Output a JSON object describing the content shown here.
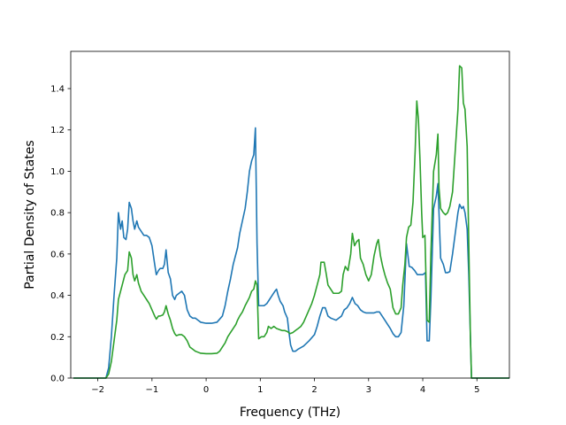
{
  "chart_data": {
    "type": "line",
    "title": "",
    "xlabel": "Frequency (THz)",
    "ylabel": "Partial Density of States",
    "xlim": [
      -2.5,
      5.6
    ],
    "ylim": [
      0.0,
      1.58
    ],
    "xticks": [
      -2,
      -1,
      0,
      1,
      2,
      3,
      4,
      5
    ],
    "xtick_labels": [
      "−2",
      "−1",
      "0",
      "1",
      "2",
      "3",
      "4",
      "5"
    ],
    "yticks": [
      0.0,
      0.2,
      0.4,
      0.6,
      0.8,
      1.0,
      1.2,
      1.4
    ],
    "ytick_labels": [
      "0.0",
      "0.2",
      "0.4",
      "0.6",
      "0.8",
      "1.0",
      "1.2",
      "1.4"
    ],
    "grid": false,
    "legend": "none",
    "colors": [
      "#1f77b4",
      "#2ca02c"
    ],
    "series": [
      {
        "color": "#1f77b4",
        "points": [
          [
            -2.45,
            0.0
          ],
          [
            -1.85,
            0.0
          ],
          [
            -1.8,
            0.05
          ],
          [
            -1.75,
            0.2
          ],
          [
            -1.7,
            0.4
          ],
          [
            -1.65,
            0.58
          ],
          [
            -1.62,
            0.8
          ],
          [
            -1.58,
            0.72
          ],
          [
            -1.55,
            0.76
          ],
          [
            -1.52,
            0.68
          ],
          [
            -1.48,
            0.67
          ],
          [
            -1.45,
            0.72
          ],
          [
            -1.42,
            0.85
          ],
          [
            -1.38,
            0.82
          ],
          [
            -1.35,
            0.76
          ],
          [
            -1.32,
            0.72
          ],
          [
            -1.28,
            0.76
          ],
          [
            -1.25,
            0.73
          ],
          [
            -1.2,
            0.71
          ],
          [
            -1.15,
            0.69
          ],
          [
            -1.1,
            0.69
          ],
          [
            -1.05,
            0.68
          ],
          [
            -1.0,
            0.64
          ],
          [
            -0.95,
            0.55
          ],
          [
            -0.92,
            0.5
          ],
          [
            -0.88,
            0.52
          ],
          [
            -0.85,
            0.53
          ],
          [
            -0.8,
            0.53
          ],
          [
            -0.77,
            0.55
          ],
          [
            -0.74,
            0.62
          ],
          [
            -0.7,
            0.51
          ],
          [
            -0.66,
            0.48
          ],
          [
            -0.62,
            0.4
          ],
          [
            -0.58,
            0.38
          ],
          [
            -0.55,
            0.4
          ],
          [
            -0.5,
            0.41
          ],
          [
            -0.45,
            0.42
          ],
          [
            -0.4,
            0.4
          ],
          [
            -0.35,
            0.33
          ],
          [
            -0.3,
            0.3
          ],
          [
            -0.25,
            0.29
          ],
          [
            -0.2,
            0.29
          ],
          [
            -0.15,
            0.28
          ],
          [
            -0.1,
            0.27
          ],
          [
            0.0,
            0.265
          ],
          [
            0.1,
            0.265
          ],
          [
            0.2,
            0.27
          ],
          [
            0.25,
            0.285
          ],
          [
            0.3,
            0.3
          ],
          [
            0.35,
            0.35
          ],
          [
            0.4,
            0.42
          ],
          [
            0.45,
            0.48
          ],
          [
            0.5,
            0.55
          ],
          [
            0.55,
            0.6
          ],
          [
            0.58,
            0.63
          ],
          [
            0.62,
            0.7
          ],
          [
            0.67,
            0.76
          ],
          [
            0.72,
            0.82
          ],
          [
            0.76,
            0.9
          ],
          [
            0.8,
            1.0
          ],
          [
            0.84,
            1.05
          ],
          [
            0.88,
            1.08
          ],
          [
            0.91,
            1.21
          ],
          [
            0.94,
            0.65
          ],
          [
            0.97,
            0.35
          ],
          [
            1.02,
            0.35
          ],
          [
            1.07,
            0.35
          ],
          [
            1.12,
            0.36
          ],
          [
            1.17,
            0.38
          ],
          [
            1.22,
            0.4
          ],
          [
            1.27,
            0.42
          ],
          [
            1.3,
            0.43
          ],
          [
            1.33,
            0.4
          ],
          [
            1.37,
            0.37
          ],
          [
            1.42,
            0.35
          ],
          [
            1.45,
            0.32
          ],
          [
            1.5,
            0.29
          ],
          [
            1.53,
            0.22
          ],
          [
            1.56,
            0.16
          ],
          [
            1.6,
            0.13
          ],
          [
            1.65,
            0.13
          ],
          [
            1.7,
            0.14
          ],
          [
            1.8,
            0.155
          ],
          [
            1.9,
            0.18
          ],
          [
            2.0,
            0.21
          ],
          [
            2.05,
            0.25
          ],
          [
            2.1,
            0.3
          ],
          [
            2.15,
            0.34
          ],
          [
            2.2,
            0.34
          ],
          [
            2.25,
            0.3
          ],
          [
            2.3,
            0.29
          ],
          [
            2.35,
            0.285
          ],
          [
            2.4,
            0.28
          ],
          [
            2.45,
            0.29
          ],
          [
            2.5,
            0.3
          ],
          [
            2.55,
            0.33
          ],
          [
            2.6,
            0.34
          ],
          [
            2.65,
            0.36
          ],
          [
            2.7,
            0.39
          ],
          [
            2.75,
            0.36
          ],
          [
            2.8,
            0.35
          ],
          [
            2.85,
            0.33
          ],
          [
            2.9,
            0.32
          ],
          [
            2.95,
            0.315
          ],
          [
            3.0,
            0.315
          ],
          [
            3.05,
            0.315
          ],
          [
            3.1,
            0.315
          ],
          [
            3.15,
            0.32
          ],
          [
            3.2,
            0.32
          ],
          [
            3.25,
            0.3
          ],
          [
            3.3,
            0.28
          ],
          [
            3.35,
            0.26
          ],
          [
            3.4,
            0.24
          ],
          [
            3.45,
            0.215
          ],
          [
            3.5,
            0.2
          ],
          [
            3.55,
            0.2
          ],
          [
            3.6,
            0.22
          ],
          [
            3.65,
            0.35
          ],
          [
            3.7,
            0.65
          ],
          [
            3.75,
            0.54
          ],
          [
            3.8,
            0.535
          ],
          [
            3.85,
            0.52
          ],
          [
            3.9,
            0.5
          ],
          [
            3.95,
            0.5
          ],
          [
            4.0,
            0.5
          ],
          [
            4.05,
            0.51
          ],
          [
            4.08,
            0.18
          ],
          [
            4.12,
            0.18
          ],
          [
            4.15,
            0.38
          ],
          [
            4.2,
            0.82
          ],
          [
            4.25,
            0.88
          ],
          [
            4.28,
            0.94
          ],
          [
            4.3,
            0.8
          ],
          [
            4.33,
            0.58
          ],
          [
            4.38,
            0.55
          ],
          [
            4.42,
            0.51
          ],
          [
            4.46,
            0.51
          ],
          [
            4.5,
            0.515
          ],
          [
            4.55,
            0.6
          ],
          [
            4.6,
            0.7
          ],
          [
            4.65,
            0.8
          ],
          [
            4.68,
            0.84
          ],
          [
            4.72,
            0.82
          ],
          [
            4.75,
            0.83
          ],
          [
            4.78,
            0.8
          ],
          [
            4.82,
            0.72
          ],
          [
            4.85,
            0.5
          ],
          [
            4.9,
            0.0
          ],
          [
            5.6,
            0.0
          ]
        ]
      },
      {
        "color": "#2ca02c",
        "points": [
          [
            -2.45,
            0.0
          ],
          [
            -1.85,
            0.0
          ],
          [
            -1.8,
            0.02
          ],
          [
            -1.75,
            0.08
          ],
          [
            -1.7,
            0.18
          ],
          [
            -1.65,
            0.28
          ],
          [
            -1.62,
            0.38
          ],
          [
            -1.58,
            0.42
          ],
          [
            -1.55,
            0.45
          ],
          [
            -1.5,
            0.5
          ],
          [
            -1.45,
            0.52
          ],
          [
            -1.42,
            0.61
          ],
          [
            -1.38,
            0.58
          ],
          [
            -1.35,
            0.5
          ],
          [
            -1.32,
            0.47
          ],
          [
            -1.28,
            0.5
          ],
          [
            -1.25,
            0.46
          ],
          [
            -1.2,
            0.42
          ],
          [
            -1.15,
            0.4
          ],
          [
            -1.1,
            0.38
          ],
          [
            -1.05,
            0.36
          ],
          [
            -1.0,
            0.33
          ],
          [
            -0.95,
            0.3
          ],
          [
            -0.92,
            0.285
          ],
          [
            -0.88,
            0.3
          ],
          [
            -0.85,
            0.3
          ],
          [
            -0.8,
            0.305
          ],
          [
            -0.77,
            0.32
          ],
          [
            -0.74,
            0.35
          ],
          [
            -0.7,
            0.31
          ],
          [
            -0.66,
            0.28
          ],
          [
            -0.62,
            0.24
          ],
          [
            -0.58,
            0.215
          ],
          [
            -0.55,
            0.205
          ],
          [
            -0.5,
            0.21
          ],
          [
            -0.45,
            0.21
          ],
          [
            -0.4,
            0.2
          ],
          [
            -0.35,
            0.18
          ],
          [
            -0.3,
            0.15
          ],
          [
            -0.25,
            0.14
          ],
          [
            -0.2,
            0.13
          ],
          [
            -0.15,
            0.125
          ],
          [
            -0.1,
            0.12
          ],
          [
            0.0,
            0.118
          ],
          [
            0.1,
            0.118
          ],
          [
            0.2,
            0.12
          ],
          [
            0.25,
            0.13
          ],
          [
            0.3,
            0.15
          ],
          [
            0.35,
            0.17
          ],
          [
            0.4,
            0.2
          ],
          [
            0.45,
            0.22
          ],
          [
            0.5,
            0.24
          ],
          [
            0.55,
            0.26
          ],
          [
            0.58,
            0.28
          ],
          [
            0.62,
            0.3
          ],
          [
            0.67,
            0.32
          ],
          [
            0.72,
            0.35
          ],
          [
            0.76,
            0.37
          ],
          [
            0.8,
            0.39
          ],
          [
            0.84,
            0.42
          ],
          [
            0.88,
            0.43
          ],
          [
            0.91,
            0.47
          ],
          [
            0.94,
            0.45
          ],
          [
            0.97,
            0.19
          ],
          [
            1.02,
            0.2
          ],
          [
            1.07,
            0.2
          ],
          [
            1.12,
            0.22
          ],
          [
            1.15,
            0.25
          ],
          [
            1.2,
            0.24
          ],
          [
            1.25,
            0.25
          ],
          [
            1.3,
            0.24
          ],
          [
            1.35,
            0.235
          ],
          [
            1.4,
            0.23
          ],
          [
            1.45,
            0.23
          ],
          [
            1.5,
            0.225
          ],
          [
            1.55,
            0.215
          ],
          [
            1.6,
            0.22
          ],
          [
            1.65,
            0.23
          ],
          [
            1.7,
            0.24
          ],
          [
            1.75,
            0.25
          ],
          [
            1.8,
            0.27
          ],
          [
            1.85,
            0.3
          ],
          [
            1.9,
            0.33
          ],
          [
            1.95,
            0.36
          ],
          [
            2.0,
            0.4
          ],
          [
            2.05,
            0.45
          ],
          [
            2.1,
            0.5
          ],
          [
            2.12,
            0.56
          ],
          [
            2.18,
            0.56
          ],
          [
            2.22,
            0.5
          ],
          [
            2.25,
            0.45
          ],
          [
            2.3,
            0.43
          ],
          [
            2.35,
            0.41
          ],
          [
            2.4,
            0.41
          ],
          [
            2.45,
            0.41
          ],
          [
            2.5,
            0.42
          ],
          [
            2.53,
            0.5
          ],
          [
            2.57,
            0.54
          ],
          [
            2.62,
            0.52
          ],
          [
            2.67,
            0.6
          ],
          [
            2.7,
            0.7
          ],
          [
            2.74,
            0.64
          ],
          [
            2.78,
            0.66
          ],
          [
            2.82,
            0.67
          ],
          [
            2.85,
            0.58
          ],
          [
            2.9,
            0.55
          ],
          [
            2.95,
            0.5
          ],
          [
            3.0,
            0.47
          ],
          [
            3.05,
            0.5
          ],
          [
            3.1,
            0.59
          ],
          [
            3.15,
            0.65
          ],
          [
            3.18,
            0.67
          ],
          [
            3.22,
            0.59
          ],
          [
            3.26,
            0.54
          ],
          [
            3.3,
            0.5
          ],
          [
            3.35,
            0.46
          ],
          [
            3.4,
            0.43
          ],
          [
            3.45,
            0.34
          ],
          [
            3.5,
            0.31
          ],
          [
            3.55,
            0.31
          ],
          [
            3.6,
            0.34
          ],
          [
            3.63,
            0.45
          ],
          [
            3.67,
            0.55
          ],
          [
            3.7,
            0.68
          ],
          [
            3.74,
            0.73
          ],
          [
            3.78,
            0.74
          ],
          [
            3.82,
            0.85
          ],
          [
            3.86,
            1.1
          ],
          [
            3.89,
            1.34
          ],
          [
            3.92,
            1.25
          ],
          [
            3.95,
            1.05
          ],
          [
            3.98,
            0.8
          ],
          [
            4.0,
            0.68
          ],
          [
            4.04,
            0.69
          ],
          [
            4.08,
            0.28
          ],
          [
            4.12,
            0.27
          ],
          [
            4.15,
            0.6
          ],
          [
            4.2,
            1.0
          ],
          [
            4.25,
            1.08
          ],
          [
            4.28,
            1.18
          ],
          [
            4.3,
            0.92
          ],
          [
            4.33,
            0.82
          ],
          [
            4.38,
            0.8
          ],
          [
            4.42,
            0.79
          ],
          [
            4.46,
            0.8
          ],
          [
            4.5,
            0.83
          ],
          [
            4.55,
            0.9
          ],
          [
            4.6,
            1.1
          ],
          [
            4.65,
            1.3
          ],
          [
            4.68,
            1.51
          ],
          [
            4.72,
            1.5
          ],
          [
            4.75,
            1.33
          ],
          [
            4.78,
            1.3
          ],
          [
            4.82,
            1.12
          ],
          [
            4.85,
            0.65
          ],
          [
            4.88,
            0.2
          ],
          [
            4.9,
            0.0
          ],
          [
            5.6,
            0.0
          ]
        ]
      }
    ]
  }
}
